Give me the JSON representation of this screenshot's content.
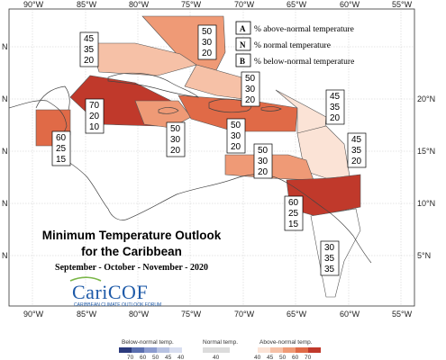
{
  "map": {
    "lon_ticks": [
      "90°W",
      "85°W",
      "80°W",
      "75°W",
      "70°W",
      "65°W",
      "60°W",
      "55°W"
    ],
    "lat_ticks_right": [
      "20°N",
      "15°N",
      "10°N",
      "5°N"
    ],
    "lat_ticks_left": [
      "N",
      "N",
      "N",
      "N",
      "N"
    ]
  },
  "legend": {
    "a_letter": "A",
    "a_text": "% above-normal temperature",
    "n_letter": "N",
    "n_text": "% normal temperature",
    "b_letter": "B",
    "b_text": "% below-normal temperature"
  },
  "title": {
    "line1": "Minimum Temperature Outlook",
    "line2": "for the Caribbean",
    "period": "September - October - November - 2020"
  },
  "logo": {
    "name": "CariCOF",
    "subtitle": "CARIBBEAN CLIMATE OUTLOOK FORUM"
  },
  "forecast_boxes": [
    {
      "name": "bahamas",
      "a": "50",
      "n": "30",
      "b": "20"
    },
    {
      "name": "gulf-mexico-north",
      "a": "45",
      "n": "35",
      "b": "20"
    },
    {
      "name": "turks-caicos",
      "a": "50",
      "n": "30",
      "b": "20"
    },
    {
      "name": "western-caribbean",
      "a": "70",
      "n": "20",
      "b": "10"
    },
    {
      "name": "belize-yucatan",
      "a": "60",
      "n": "25",
      "b": "15"
    },
    {
      "name": "jamaica",
      "a": "50",
      "n": "30",
      "b": "20"
    },
    {
      "name": "hispaniola",
      "a": "50",
      "n": "30",
      "b": "20"
    },
    {
      "name": "leeward-islands",
      "a": "45",
      "n": "35",
      "b": "20"
    },
    {
      "name": "windward-islands",
      "a": "45",
      "n": "35",
      "b": "20"
    },
    {
      "name": "abc-islands",
      "a": "50",
      "n": "30",
      "b": "20"
    },
    {
      "name": "trinidad-guyana",
      "a": "60",
      "n": "25",
      "b": "15"
    },
    {
      "name": "suriname-guiana",
      "a": "30",
      "n": "35",
      "b": "35"
    }
  ],
  "colorbar": {
    "below_label": "Below-normal temp.",
    "normal_label": "Normal temp.",
    "above_label": "Above-normal temp.",
    "below_ticks": [
      "70",
      "60",
      "50",
      "45",
      "40"
    ],
    "normal_ticks": [
      "40"
    ],
    "above_ticks": [
      "40",
      "45",
      "50",
      "60",
      "70"
    ],
    "below_colors": [
      "#2b3a7d",
      "#5a6fb0",
      "#8b9bcf",
      "#b7c2e2",
      "#d8def0"
    ],
    "normal_color": "#dcdcdc",
    "above_colors": [
      "#fbe3d6",
      "#f6c1a7",
      "#ef9a76",
      "#e06a47",
      "#c0392b"
    ]
  }
}
